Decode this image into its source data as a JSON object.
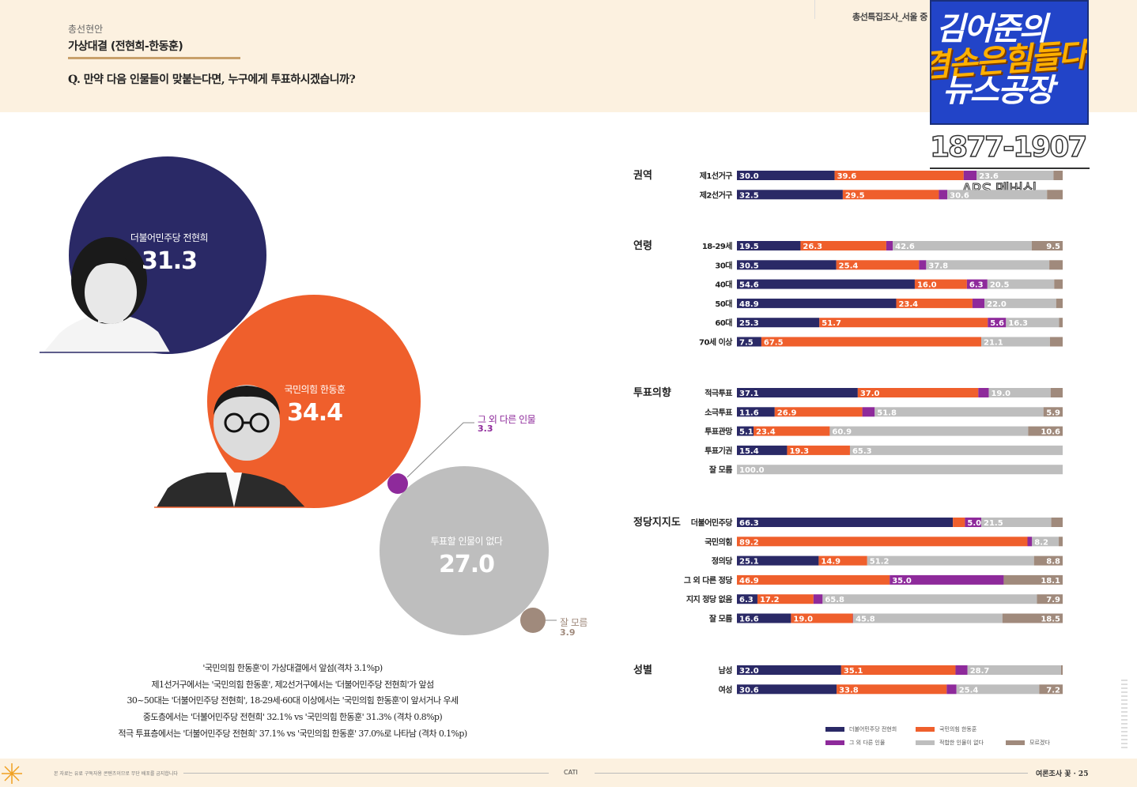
{
  "header": {
    "section_label": "총선현안",
    "title": "가상대결 (전현희-한동훈)",
    "question": "Q. 만약 다음 인물들이 맞붙는다면, 누구에게 투표하시겠습니까?",
    "survey_tag": "총선특집조사_서울 중"
  },
  "overlay": {
    "logo_line1": "김어준의",
    "logo_line2": "겸손은힘들다",
    "logo_line3": "뉴스공장",
    "phone": "1877-1907",
    "ars": "ARS 멤버십"
  },
  "bubbles": {
    "jeon": {
      "name": "더불어민주당 전현희",
      "value": "31.3"
    },
    "han": {
      "name": "국민의힘 한동훈",
      "value": "34.4"
    },
    "other": {
      "name": "그 외 다른 인물",
      "value": "3.3"
    },
    "none": {
      "name": "투표할 인물이 없다",
      "value": "27.0"
    },
    "dk": {
      "name": "잘 모름",
      "value": "3.9"
    }
  },
  "summary": [
    "'국민의힘 한동훈'이 가상대결에서 앞섬(격차 3.1%p)",
    "제1선거구에서는 '국민의힘 한동훈', 제2선거구에서는 '더불어민주당 전현희'가 앞섬",
    "30~50대는 '더불어민주당 전현희', 18-29세·60대 이상에서는 '국민의힘 한동훈'이 앞서거나 우세",
    "중도층에서는 '더불어민주당 전현희' 32.1% vs '국민의힘 한동훈' 31.3% (격차 0.8%p)",
    "적극 투표층에서는 '더불어민주당 전현희' 37.1% vs '국민의힘 한동훈' 37.0%로 나타남 (격차 0.1%p)"
  ],
  "colors": {
    "jeon": "#2a2966",
    "han": "#ef5f2c",
    "other": "#8e2a9b",
    "none": "#bebebe",
    "dk": "#a08a7c",
    "band": "#fcf1e0"
  },
  "chart_data": [
    {
      "type": "pie",
      "title": "가상대결 (전현희-한동훈)",
      "categories": [
        "더불어민주당 전현희",
        "국민의힘 한동훈",
        "그 외 다른 인물",
        "투표할 인물이 없다",
        "잘 모름"
      ],
      "values": [
        31.3,
        34.4,
        3.3,
        27.0,
        3.9
      ]
    },
    {
      "type": "bar",
      "stacked": true,
      "orientation": "horizontal",
      "legend": [
        {
          "name": "더불어민주당 전현희",
          "color": "#2a2966"
        },
        {
          "name": "국민의힘 한동훈",
          "color": "#ef5f2c"
        },
        {
          "name": "그 외 다른 인물",
          "color": "#8e2a9b"
        },
        {
          "name": "적합한 인물이 없다",
          "color": "#bebebe"
        },
        {
          "name": "모르겠다",
          "color": "#a08a7c"
        }
      ],
      "legend_position": "bottom-right",
      "groups": [
        {
          "name": "권역",
          "rows": [
            {
              "label": "제1선거구",
              "values": [
                30.0,
                39.6,
                4.0,
                23.6,
                2.8
              ],
              "labels": [
                "30.0",
                "39.6",
                "",
                "23.6",
                ""
              ]
            },
            {
              "label": "제2선거구",
              "values": [
                32.5,
                29.5,
                2.6,
                30.6,
                4.8
              ],
              "labels": [
                "32.5",
                "29.5",
                "",
                "30.6",
                ""
              ]
            }
          ]
        },
        {
          "name": "연령",
          "rows": [
            {
              "label": "18-29세",
              "values": [
                19.5,
                26.3,
                2.0,
                42.6,
                9.5
              ],
              "labels": [
                "19.5",
                "26.3",
                "",
                "42.6",
                "9.5"
              ]
            },
            {
              "label": "30대",
              "values": [
                30.5,
                25.4,
                2.2,
                37.8,
                4.1
              ],
              "labels": [
                "30.5",
                "25.4",
                "",
                "37.8",
                ""
              ]
            },
            {
              "label": "40대",
              "values": [
                54.6,
                16.0,
                6.3,
                20.5,
                2.6
              ],
              "labels": [
                "54.6",
                "16.0",
                "6.3",
                "20.5",
                ""
              ]
            },
            {
              "label": "50대",
              "values": [
                48.9,
                23.4,
                3.7,
                22.0,
                2.0
              ],
              "labels": [
                "48.9",
                "23.4",
                "",
                "22.0",
                ""
              ]
            },
            {
              "label": "60대",
              "values": [
                25.3,
                51.7,
                5.6,
                16.3,
                1.1
              ],
              "labels": [
                "25.3",
                "51.7",
                "5.6",
                "16.3",
                ""
              ]
            },
            {
              "label": "70세 이상",
              "values": [
                7.5,
                67.5,
                0.0,
                21.1,
                3.9
              ],
              "labels": [
                "7.5",
                "67.5",
                "",
                "21.1",
                ""
              ]
            }
          ]
        },
        {
          "name": "투표의향",
          "rows": [
            {
              "label": "적극투표",
              "values": [
                37.1,
                37.0,
                3.2,
                19.0,
                3.7
              ],
              "labels": [
                "37.1",
                "37.0",
                "",
                "19.0",
                ""
              ]
            },
            {
              "label": "소극투표",
              "values": [
                11.6,
                26.9,
                3.8,
                51.8,
                5.9
              ],
              "labels": [
                "11.6",
                "26.9",
                "",
                "51.8",
                "5.9"
              ]
            },
            {
              "label": "투표관망",
              "values": [
                5.1,
                23.4,
                0.0,
                60.9,
                10.6
              ],
              "labels": [
                "5.1",
                "23.4",
                "",
                "60.9",
                "10.6"
              ]
            },
            {
              "label": "투표기권",
              "values": [
                15.4,
                19.3,
                0.0,
                65.3,
                0.0
              ],
              "labels": [
                "15.4",
                "19.3",
                "",
                "65.3",
                ""
              ]
            },
            {
              "label": "잘 모름",
              "values": [
                0.0,
                0.0,
                0.0,
                100.0,
                0.0
              ],
              "labels": [
                "",
                "",
                "",
                "100.0",
                ""
              ]
            }
          ]
        },
        {
          "name": "정당지지도",
          "rows": [
            {
              "label": "더불어민주당",
              "values": [
                66.3,
                3.7,
                5.0,
                21.5,
                3.5
              ],
              "labels": [
                "66.3",
                "",
                "5.0",
                "21.5",
                ""
              ]
            },
            {
              "label": "국민의힘",
              "values": [
                0.0,
                89.2,
                1.4,
                8.2,
                1.2
              ],
              "labels": [
                "",
                "89.2",
                "",
                "8.2",
                ""
              ]
            },
            {
              "label": "정의당",
              "values": [
                25.1,
                14.9,
                0.0,
                51.2,
                8.8
              ],
              "labels": [
                "25.1",
                "14.9",
                "",
                "51.2",
                "8.8"
              ]
            },
            {
              "label": "그 외 다른 정당",
              "values": [
                0.0,
                46.9,
                35.0,
                0.0,
                18.1
              ],
              "labels": [
                "",
                "46.9",
                "35.0",
                "",
                "18.1"
              ]
            },
            {
              "label": "지지 정당 없음",
              "values": [
                6.3,
                17.2,
                2.8,
                65.8,
                7.9
              ],
              "labels": [
                "6.3",
                "17.2",
                "",
                "65.8",
                "7.9"
              ]
            },
            {
              "label": "잘 모름",
              "values": [
                16.6,
                19.0,
                0.1,
                45.8,
                18.5
              ],
              "labels": [
                "16.6",
                "19.0",
                "",
                "45.8",
                "18.5"
              ]
            }
          ]
        },
        {
          "name": "성별",
          "rows": [
            {
              "label": "남성",
              "values": [
                32.0,
                35.1,
                3.7,
                28.7,
                0.5
              ],
              "labels": [
                "32.0",
                "35.1",
                "",
                "28.7",
                ""
              ]
            },
            {
              "label": "여성",
              "values": [
                30.6,
                33.8,
                3.0,
                25.4,
                7.2
              ],
              "labels": [
                "30.6",
                "33.8",
                "",
                "25.4",
                "7.2"
              ]
            }
          ]
        }
      ]
    }
  ],
  "footer": {
    "note": "본 자료는 유료 구독자용 콘텐츠이므로 무단 배포를 금지합니다",
    "method": "CATI",
    "page": "여론조사 꽃 · 25"
  }
}
